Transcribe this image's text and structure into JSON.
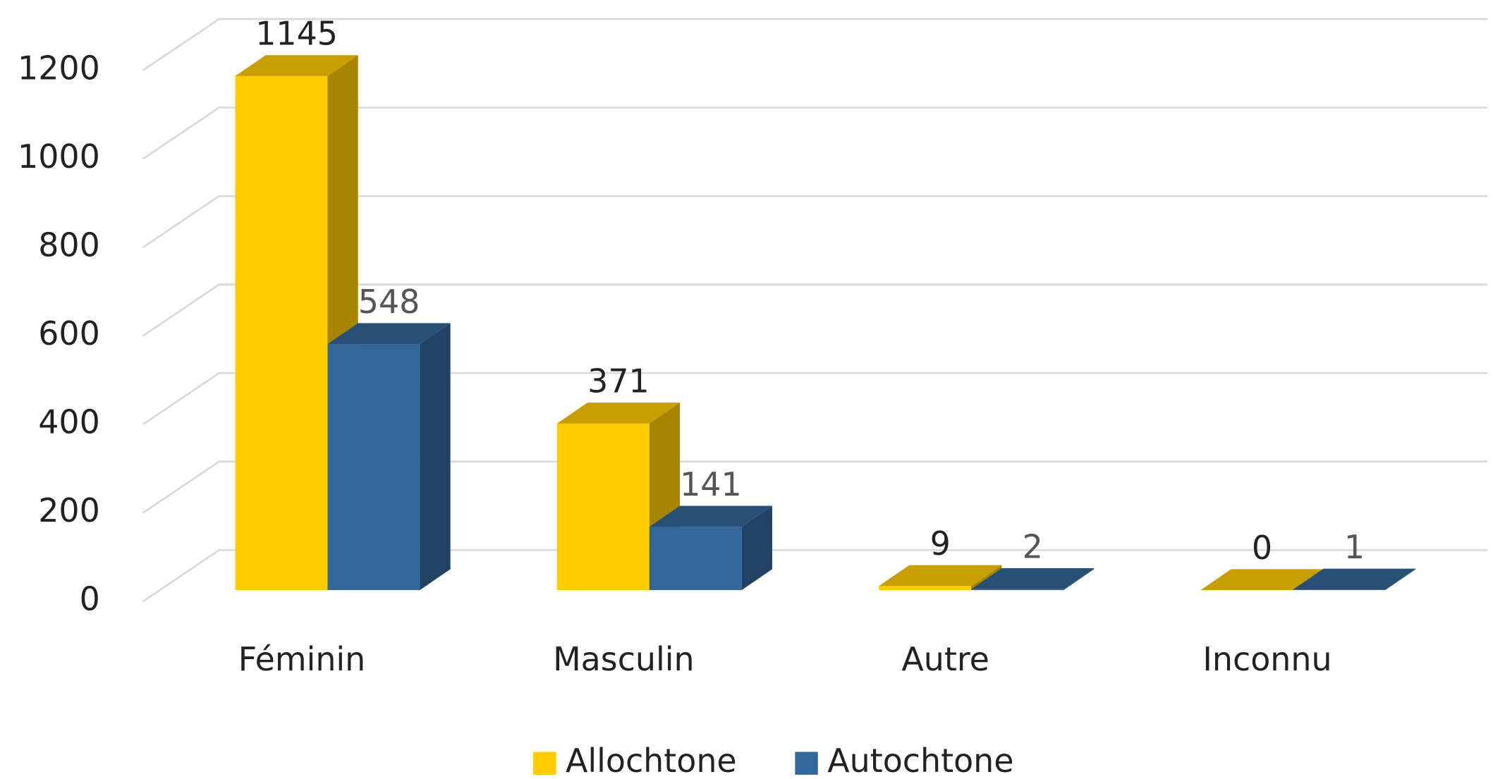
{
  "chart_data": {
    "type": "bar",
    "three_d": true,
    "categories": [
      "Féminin",
      "Masculin",
      "Autre",
      "Inconnu"
    ],
    "series": [
      {
        "name": "Allochtone",
        "color": "#FFCC00",
        "values": [
          1145,
          371,
          9,
          0
        ]
      },
      {
        "name": "Autochtone",
        "color": "#336699",
        "values": [
          548,
          141,
          2,
          1
        ]
      }
    ],
    "ylim": [
      0,
      1200
    ],
    "yticks": [
      0,
      200,
      400,
      600,
      800,
      1000,
      1200
    ],
    "grid": true,
    "legend": "bottom",
    "data_labels": true
  }
}
